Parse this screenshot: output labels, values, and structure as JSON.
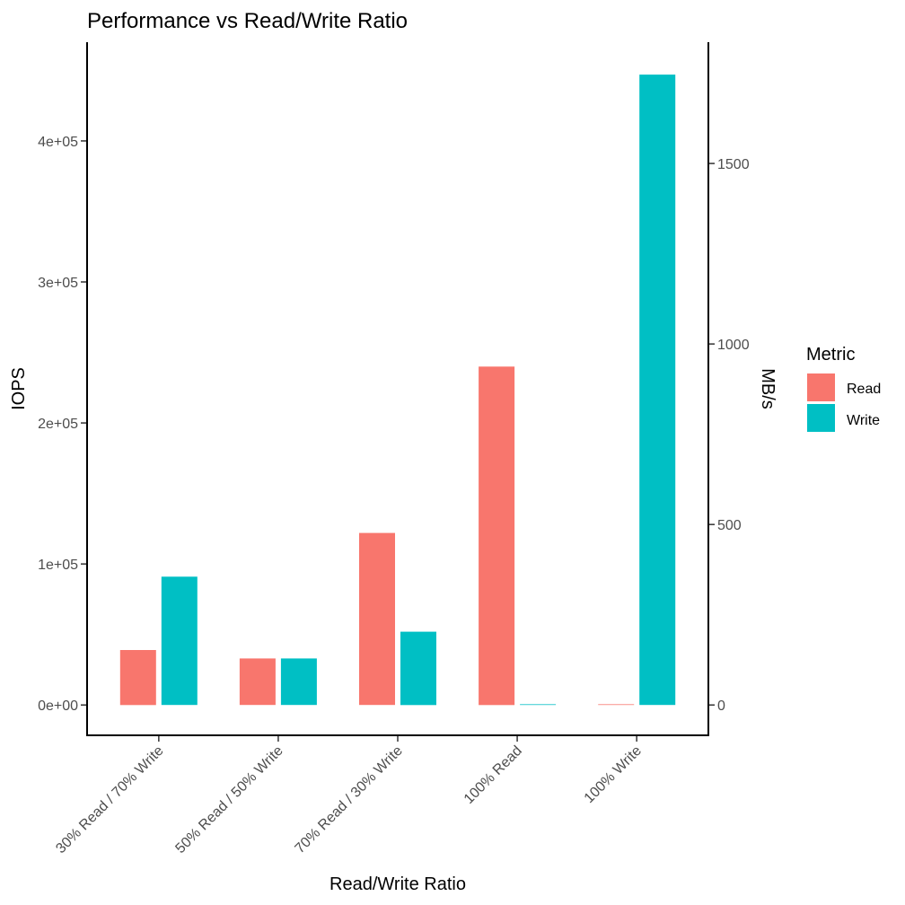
{
  "chart_data": {
    "type": "bar",
    "title": "Performance vs Read/Write Ratio",
    "xlabel": "Read/Write Ratio",
    "ylabel": "IOPS",
    "y2label": "MB/s",
    "categories": [
      "30% Read / 70% Write",
      "50% Read / 50% Write",
      "70% Read / 30% Write",
      "100% Read",
      "100% Write"
    ],
    "series": [
      {
        "name": "Read",
        "color": "#F8766D",
        "values": [
          39000,
          33000,
          122000,
          240000,
          0
        ]
      },
      {
        "name": "Write",
        "color": "#00BFC4",
        "values": [
          91000,
          33000,
          52000,
          0,
          447000
        ]
      }
    ],
    "ylim": [
      -21500,
      470000
    ],
    "yticks": [
      0,
      100000,
      200000,
      300000,
      400000
    ],
    "ytick_labels": [
      "0e+00",
      "1e+05",
      "2e+05",
      "3e+05",
      "4e+05"
    ],
    "y2_ticks": [
      0,
      500,
      1000,
      1500
    ],
    "y2_tick_labels": [
      "0",
      "500",
      "1000",
      "1500"
    ],
    "y2_scale_per_iops": 0.00390625,
    "legend": {
      "title": "Metric",
      "position": "right"
    },
    "grid": false
  }
}
